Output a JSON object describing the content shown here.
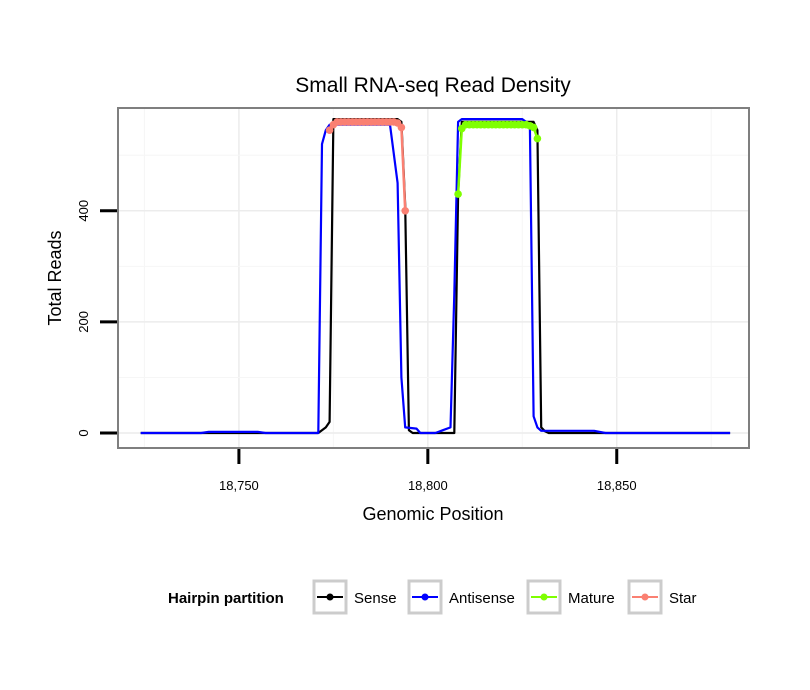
{
  "chart_data": {
    "type": "line",
    "title": "Small RNA-seq Read Density",
    "xlabel": "Genomic Position",
    "ylabel": "Total Reads",
    "xlim": [
      18718,
      18885
    ],
    "ylim": [
      -27,
      585
    ],
    "x_ticks": [
      {
        "value": 18750,
        "label": "18,750"
      },
      {
        "value": 18800,
        "label": "18,800"
      },
      {
        "value": 18850,
        "label": "18,850"
      }
    ],
    "y_ticks": [
      {
        "value": 0,
        "label": "0"
      },
      {
        "value": 200,
        "label": "200"
      },
      {
        "value": 400,
        "label": "400"
      }
    ],
    "legend": {
      "title": "Hairpin partition",
      "position": "bottom",
      "entries": [
        "Sense",
        "Antisense",
        "Mature",
        "Star"
      ]
    },
    "series": [
      {
        "name": "Sense",
        "color": "#000000",
        "style": "line",
        "points": [
          [
            18724,
            0
          ],
          [
            18771,
            0
          ],
          [
            18773,
            10
          ],
          [
            18774,
            20
          ],
          [
            18775,
            565
          ],
          [
            18792,
            565
          ],
          [
            18793,
            560
          ],
          [
            18794,
            410
          ],
          [
            18795,
            5
          ],
          [
            18796,
            0
          ],
          [
            18807,
            0
          ],
          [
            18808,
            430
          ],
          [
            18809,
            560
          ],
          [
            18828,
            560
          ],
          [
            18829,
            545
          ],
          [
            18830,
            10
          ],
          [
            18831,
            3
          ],
          [
            18832,
            0
          ],
          [
            18880,
            0
          ]
        ]
      },
      {
        "name": "Antisense",
        "color": "#0000ff",
        "style": "line",
        "points": [
          [
            18724,
            0
          ],
          [
            18740,
            0
          ],
          [
            18742,
            2
          ],
          [
            18755,
            2
          ],
          [
            18757,
            0
          ],
          [
            18771,
            0
          ],
          [
            18772,
            520
          ],
          [
            18773,
            545
          ],
          [
            18774,
            555
          ],
          [
            18775,
            555
          ],
          [
            18790,
            555
          ],
          [
            18792,
            450
          ],
          [
            18793,
            100
          ],
          [
            18794,
            10
          ],
          [
            18797,
            8
          ],
          [
            18798,
            0
          ],
          [
            18802,
            0
          ],
          [
            18804,
            5
          ],
          [
            18806,
            10
          ],
          [
            18807,
            250
          ],
          [
            18808,
            560
          ],
          [
            18809,
            565
          ],
          [
            18825,
            565
          ],
          [
            18826,
            560
          ],
          [
            18827,
            550
          ],
          [
            18828,
            30
          ],
          [
            18829,
            10
          ],
          [
            18830,
            4
          ],
          [
            18844,
            4
          ],
          [
            18847,
            0
          ],
          [
            18880,
            0
          ]
        ]
      },
      {
        "name": "Mature",
        "color": "#7fff00",
        "style": "points",
        "points": [
          [
            18808,
            430
          ],
          [
            18809,
            548
          ],
          [
            18810,
            555
          ],
          [
            18811,
            555
          ],
          [
            18812,
            555
          ],
          [
            18813,
            555
          ],
          [
            18814,
            555
          ],
          [
            18815,
            555
          ],
          [
            18816,
            555
          ],
          [
            18817,
            555
          ],
          [
            18818,
            555
          ],
          [
            18819,
            555
          ],
          [
            18820,
            555
          ],
          [
            18821,
            555
          ],
          [
            18822,
            555
          ],
          [
            18823,
            555
          ],
          [
            18824,
            555
          ],
          [
            18825,
            555
          ],
          [
            18826,
            555
          ],
          [
            18827,
            553
          ],
          [
            18828,
            550
          ],
          [
            18829,
            530
          ]
        ]
      },
      {
        "name": "Star",
        "color": "#fa8072",
        "style": "points",
        "points": [
          [
            18774,
            545
          ],
          [
            18775,
            555
          ],
          [
            18776,
            560
          ],
          [
            18777,
            560
          ],
          [
            18778,
            560
          ],
          [
            18779,
            560
          ],
          [
            18780,
            560
          ],
          [
            18781,
            560
          ],
          [
            18782,
            560
          ],
          [
            18783,
            560
          ],
          [
            18784,
            560
          ],
          [
            18785,
            560
          ],
          [
            18786,
            560
          ],
          [
            18787,
            560
          ],
          [
            18788,
            560
          ],
          [
            18789,
            560
          ],
          [
            18790,
            560
          ],
          [
            18791,
            560
          ],
          [
            18792,
            558
          ],
          [
            18793,
            550
          ],
          [
            18794,
            400
          ]
        ]
      }
    ]
  }
}
